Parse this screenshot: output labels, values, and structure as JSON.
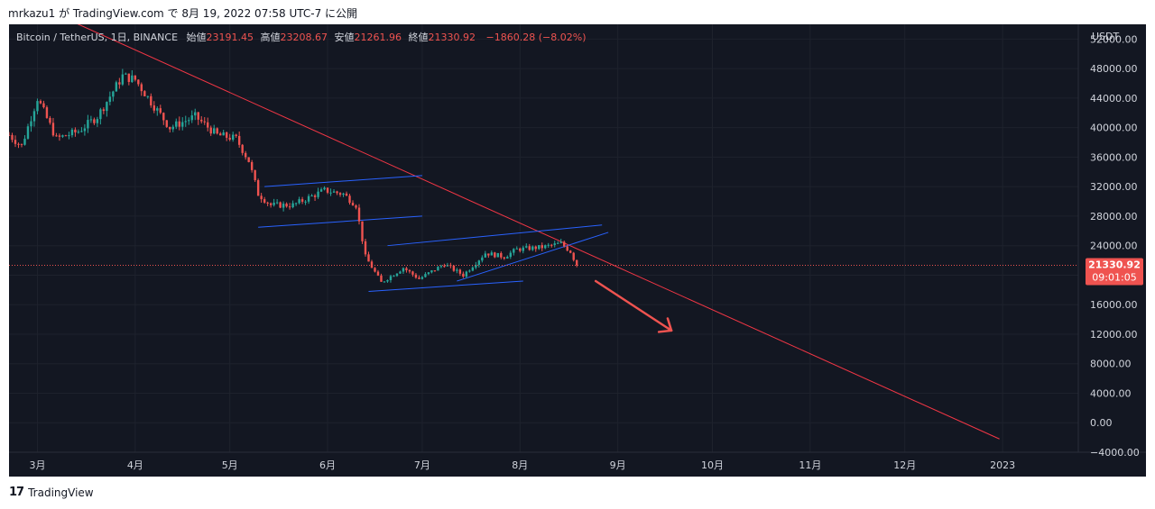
{
  "header": {
    "caption": "mrkazu1 が TradingView.com で 8月 19, 2022 07:58 UTC-7 に公開"
  },
  "legend": {
    "symbol": "Bitcoin / TetherUS, 1日, BINANCE",
    "open_label": "始値",
    "open": "23191.45",
    "high_label": "高値",
    "high": "23208.67",
    "low_label": "安値",
    "low": "21261.96",
    "close_label": "終値",
    "close": "21330.92",
    "change": "−1860.28 (−8.02%)"
  },
  "footer": {
    "brand": "TradingView",
    "logo_text": "17"
  },
  "colors": {
    "background": "#131722",
    "up": "#26a69a",
    "down": "#ef5350",
    "trendline": "#f23645",
    "channel": "#2962ff",
    "grid": "#1e222d",
    "axis_text": "#d1d4dc"
  },
  "chart_data": {
    "type": "candlestick",
    "currency": "USDT",
    "ylim": [
      -4000,
      54000
    ],
    "y_ticks": [
      52000,
      48000,
      44000,
      40000,
      36000,
      32000,
      28000,
      24000,
      20000,
      16000,
      12000,
      8000,
      4000,
      0,
      -4000
    ],
    "y_tick_labels": [
      "52000.00",
      "48000.00",
      "44000.00",
      "40000.00",
      "36000.00",
      "32000.00",
      "28000.00",
      "24000.00",
      "",
      "16000.00",
      "12000.00",
      "8000.00",
      "4000.00",
      "0.00",
      "−4000.00"
    ],
    "x_range": [
      "2022-02-20",
      "2023-01-25"
    ],
    "x_ticks": [
      {
        "date": "2022-03-01",
        "label": "3月"
      },
      {
        "date": "2022-04-01",
        "label": "4月"
      },
      {
        "date": "2022-05-01",
        "label": "5月"
      },
      {
        "date": "2022-06-01",
        "label": "6月"
      },
      {
        "date": "2022-07-01",
        "label": "7月"
      },
      {
        "date": "2022-08-01",
        "label": "8月"
      },
      {
        "date": "2022-09-01",
        "label": "9月"
      },
      {
        "date": "2022-10-01",
        "label": "10月"
      },
      {
        "date": "2022-11-01",
        "label": "11月"
      },
      {
        "date": "2022-12-01",
        "label": "12月"
      },
      {
        "date": "2023-01-01",
        "label": "2023"
      }
    ],
    "price_path": [
      [
        "2022-02-20",
        39000
      ],
      [
        "2022-02-24",
        37500
      ],
      [
        "2022-03-01",
        44000
      ],
      [
        "2022-03-07",
        38500
      ],
      [
        "2022-03-14",
        39500
      ],
      [
        "2022-03-20",
        41500
      ],
      [
        "2022-03-28",
        47000
      ],
      [
        "2022-04-01",
        46500
      ],
      [
        "2022-04-06",
        43500
      ],
      [
        "2022-04-12",
        40000
      ],
      [
        "2022-04-20",
        41500
      ],
      [
        "2022-04-27",
        39000
      ],
      [
        "2022-05-03",
        38500
      ],
      [
        "2022-05-07",
        35500
      ],
      [
        "2022-05-10",
        31000
      ],
      [
        "2022-05-14",
        29500
      ],
      [
        "2022-05-21",
        29500
      ],
      [
        "2022-05-31",
        31500
      ],
      [
        "2022-06-06",
        31000
      ],
      [
        "2022-06-10",
        29500
      ],
      [
        "2022-06-13",
        22500
      ],
      [
        "2022-06-18",
        19000
      ],
      [
        "2022-06-25",
        21000
      ],
      [
        "2022-06-30",
        19500
      ],
      [
        "2022-07-08",
        21500
      ],
      [
        "2022-07-14",
        20000
      ],
      [
        "2022-07-21",
        23000
      ],
      [
        "2022-07-27",
        22500
      ],
      [
        "2022-07-31",
        23500
      ],
      [
        "2022-08-08",
        23800
      ],
      [
        "2022-08-14",
        24300
      ],
      [
        "2022-08-17",
        23200
      ],
      [
        "2022-08-19",
        21330
      ]
    ],
    "current_price": {
      "value": 21330.92,
      "label": "21330.92",
      "countdown": "09:01:05"
    },
    "drawings": [
      {
        "name": "descending-trendline",
        "type": "line",
        "points": [
          [
            "2022-03-01",
            56500
          ],
          [
            "2022-12-31",
            -2200
          ]
        ]
      },
      {
        "name": "upper-channel-1",
        "type": "line",
        "points": [
          [
            "2022-05-12",
            32000
          ],
          [
            "2022-07-01",
            33500
          ]
        ]
      },
      {
        "name": "lower-channel-1",
        "type": "line",
        "points": [
          [
            "2022-05-10",
            26500
          ],
          [
            "2022-07-01",
            28000
          ]
        ]
      },
      {
        "name": "upper-channel-2",
        "type": "line",
        "points": [
          [
            "2022-06-20",
            24000
          ],
          [
            "2022-08-27",
            26800
          ]
        ]
      },
      {
        "name": "lower-channel-2",
        "type": "line",
        "points": [
          [
            "2022-06-14",
            17800
          ],
          [
            "2022-08-02",
            19200
          ]
        ]
      },
      {
        "name": "rising-wedge-line",
        "type": "line",
        "points": [
          [
            "2022-07-12",
            19200
          ],
          [
            "2022-08-29",
            25800
          ]
        ]
      }
    ],
    "arrow": {
      "from": [
        "2022-08-25",
        19200
      ],
      "to": [
        "2022-09-18",
        12500
      ]
    }
  }
}
